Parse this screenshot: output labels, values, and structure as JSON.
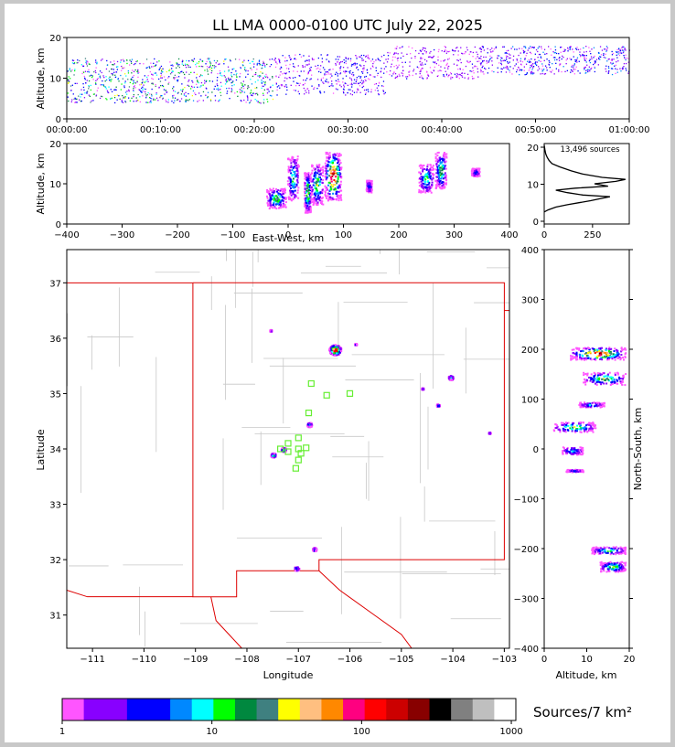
{
  "colors": {
    "state_border": "#dd0000",
    "county_border": "#c8c8c8",
    "station_marker": "#66ee33",
    "histogram_line": "#000000"
  },
  "chart_data": [
    {
      "id": "time-altitude",
      "type": "scatter",
      "title": "LL LMA 0000-0100 UTC July 22, 2025",
      "xlabel": "",
      "ylabel": "Altitude, km",
      "x_ticks": [
        "00:00:00",
        "00:10:00",
        "00:20:00",
        "00:30:00",
        "00:40:00",
        "00:50:00",
        "01:00:00"
      ],
      "y_ticks": [
        "0",
        "10",
        "20"
      ],
      "ylim": [
        0,
        20
      ],
      "xlim_minutes": [
        0,
        60
      ],
      "clusters": [
        {
          "x": [
            0,
            22
          ],
          "y": [
            4,
            15
          ],
          "density": 0.95
        },
        {
          "x": [
            22,
            34
          ],
          "y": [
            6,
            16
          ],
          "density": 0.45
        },
        {
          "x": [
            34,
            44
          ],
          "y": [
            10,
            18
          ],
          "density": 0.3
        },
        {
          "x": [
            44,
            60
          ],
          "y": [
            11,
            18
          ],
          "density": 0.55
        }
      ]
    },
    {
      "id": "eastwest-altitude",
      "type": "scatter",
      "xlabel": "East-West, km",
      "ylabel": "Altitude, km",
      "x_ticks": [
        "−400",
        "−300",
        "−200",
        "−100",
        "0",
        "100",
        "200",
        "300",
        "400"
      ],
      "y_ticks": [
        "0",
        "10",
        "20"
      ],
      "xlim": [
        -400,
        400
      ],
      "ylim": [
        0,
        20
      ],
      "clusters": [
        {
          "x": [
            -40,
            -5
          ],
          "y": [
            4,
            9
          ],
          "peak": 0.6
        },
        {
          "x": [
            -2,
            18
          ],
          "y": [
            6,
            17
          ],
          "peak": 0.5
        },
        {
          "x": [
            28,
            40
          ],
          "y": [
            3,
            13
          ],
          "peak": 0.7
        },
        {
          "x": [
            40,
            62
          ],
          "y": [
            5,
            15
          ],
          "peak": 0.6
        },
        {
          "x": [
            65,
            95
          ],
          "y": [
            6,
            18
          ],
          "peak": 1.0
        },
        {
          "x": [
            140,
            150
          ],
          "y": [
            8,
            11
          ],
          "peak": 0.3
        },
        {
          "x": [
            235,
            262
          ],
          "y": [
            8,
            15
          ],
          "peak": 0.5
        },
        {
          "x": [
            265,
            285
          ],
          "y": [
            9,
            18
          ],
          "peak": 0.6
        },
        {
          "x": [
            330,
            345
          ],
          "y": [
            12,
            14
          ],
          "peak": 0.3
        }
      ]
    },
    {
      "id": "altitude-histogram",
      "type": "line",
      "annotation": "13,496 sources",
      "x_ticks": [
        "0",
        "250"
      ],
      "y_ticks": [
        "0",
        "10",
        "20"
      ],
      "xlim": [
        0,
        440
      ],
      "ylim": [
        0,
        20
      ],
      "points": [
        [
          0,
          3
        ],
        [
          20,
          3.5
        ],
        [
          60,
          4.2
        ],
        [
          120,
          4.8
        ],
        [
          180,
          5.3
        ],
        [
          240,
          5.8
        ],
        [
          290,
          6.3
        ],
        [
          340,
          6.8
        ],
        [
          200,
          7.2
        ],
        [
          120,
          7.8
        ],
        [
          60,
          8.4
        ],
        [
          160,
          8.9
        ],
        [
          330,
          9.4
        ],
        [
          260,
          10
        ],
        [
          370,
          10.6
        ],
        [
          420,
          11.1
        ],
        [
          300,
          11.6
        ],
        [
          200,
          12.4
        ],
        [
          140,
          13.2
        ],
        [
          80,
          14.2
        ],
        [
          40,
          15
        ],
        [
          25,
          15.8
        ],
        [
          15,
          16.6
        ],
        [
          8,
          17.4
        ],
        [
          4,
          18.4
        ],
        [
          0,
          19.6
        ]
      ]
    },
    {
      "id": "plan-view",
      "type": "scatter",
      "xlabel": "Longitude",
      "ylabel": "Latitude",
      "x_ticks": [
        "−111",
        "−110",
        "−109",
        "−108",
        "−107",
        "−106",
        "−105",
        "−104",
        "−103"
      ],
      "y_ticks": [
        "31",
        "32",
        "33",
        "34",
        "35",
        "36",
        "37"
      ],
      "xlim": [
        -111.5,
        -102.9
      ],
      "ylim": [
        30.4,
        37.6
      ],
      "clusters": [
        {
          "lon": -106.3,
          "lat": 35.8,
          "size": 0.12,
          "peak": 1.0
        },
        {
          "lon": -104.05,
          "lat": 35.3,
          "size": 0.05,
          "peak": 0.5
        },
        {
          "lon": -104.3,
          "lat": 34.8,
          "size": 0.03,
          "peak": 0.4
        },
        {
          "lon": -104.6,
          "lat": 35.1,
          "size": 0.02,
          "peak": 0.3
        },
        {
          "lon": -106.8,
          "lat": 34.45,
          "size": 0.05,
          "peak": 0.5
        },
        {
          "lon": -107.3,
          "lat": 34.0,
          "size": 0.05,
          "peak": 0.5
        },
        {
          "lon": -107.5,
          "lat": 33.9,
          "size": 0.05,
          "peak": 0.6
        },
        {
          "lon": -106.7,
          "lat": 32.2,
          "size": 0.04,
          "peak": 0.4
        },
        {
          "lon": -107.05,
          "lat": 31.85,
          "size": 0.05,
          "peak": 0.4
        },
        {
          "lon": -107.55,
          "lat": 36.15,
          "size": 0.02,
          "peak": 0.2
        },
        {
          "lon": -105.9,
          "lat": 35.9,
          "size": 0.02,
          "peak": 0.2
        },
        {
          "lon": -103.3,
          "lat": 34.3,
          "size": 0.02,
          "peak": 0.2
        }
      ],
      "stations": [
        [
          -106.75,
          35.18
        ],
        [
          -106.45,
          34.97
        ],
        [
          -106.0,
          35.0
        ],
        [
          -106.8,
          34.65
        ],
        [
          -107.0,
          34.2
        ],
        [
          -107.2,
          34.1
        ],
        [
          -107.35,
          34.0
        ],
        [
          -107.0,
          34.0
        ],
        [
          -106.85,
          34.02
        ],
        [
          -107.0,
          33.8
        ],
        [
          -107.05,
          33.65
        ],
        [
          -107.2,
          33.95
        ],
        [
          -106.95,
          33.92
        ]
      ]
    },
    {
      "id": "altitude-northsouth",
      "type": "scatter",
      "xlabel": "Altitude, km",
      "ylabel": "North-South, km",
      "x_ticks": [
        "0",
        "10",
        "20"
      ],
      "y_ticks": [
        "400",
        "300",
        "200",
        "100",
        "0",
        "−100",
        "−200",
        "−300",
        "−400"
      ],
      "xlim": [
        0,
        20
      ],
      "ylim": [
        -400,
        400
      ],
      "clusters": [
        {
          "x": [
            6,
            19
          ],
          "y": [
            180,
            205
          ],
          "peak": 1.0
        },
        {
          "x": [
            9,
            19
          ],
          "y": [
            130,
            155
          ],
          "peak": 0.6
        },
        {
          "x": [
            8,
            14
          ],
          "y": [
            85,
            95
          ],
          "peak": 0.4
        },
        {
          "x": [
            2,
            12
          ],
          "y": [
            35,
            55
          ],
          "peak": 0.6
        },
        {
          "x": [
            4,
            9
          ],
          "y": [
            -10,
            5
          ],
          "peak": 0.4
        },
        {
          "x": [
            5,
            9
          ],
          "y": [
            -45,
            -40
          ],
          "peak": 0.3
        },
        {
          "x": [
            11,
            19
          ],
          "y": [
            -210,
            -195
          ],
          "peak": 0.5
        },
        {
          "x": [
            13,
            19
          ],
          "y": [
            -245,
            -225
          ],
          "peak": 0.6
        }
      ]
    }
  ],
  "colorbar": {
    "label": "Sources/7 km²",
    "ticks": [
      "1",
      "10",
      "100",
      "1000"
    ],
    "colors": [
      "#ff55ff",
      "#8800ff",
      "#8800ff",
      "#0000ff",
      "#0000ff",
      "#0088ff",
      "#00ffff",
      "#00ff00",
      "#00883f",
      "#3f8080",
      "#ffff00",
      "#ffbf80",
      "#ff8800",
      "#ff0080",
      "#ff0000",
      "#cc0000",
      "#880000",
      "#000000",
      "#808080",
      "#bfbfbf",
      "#ffffff"
    ]
  }
}
